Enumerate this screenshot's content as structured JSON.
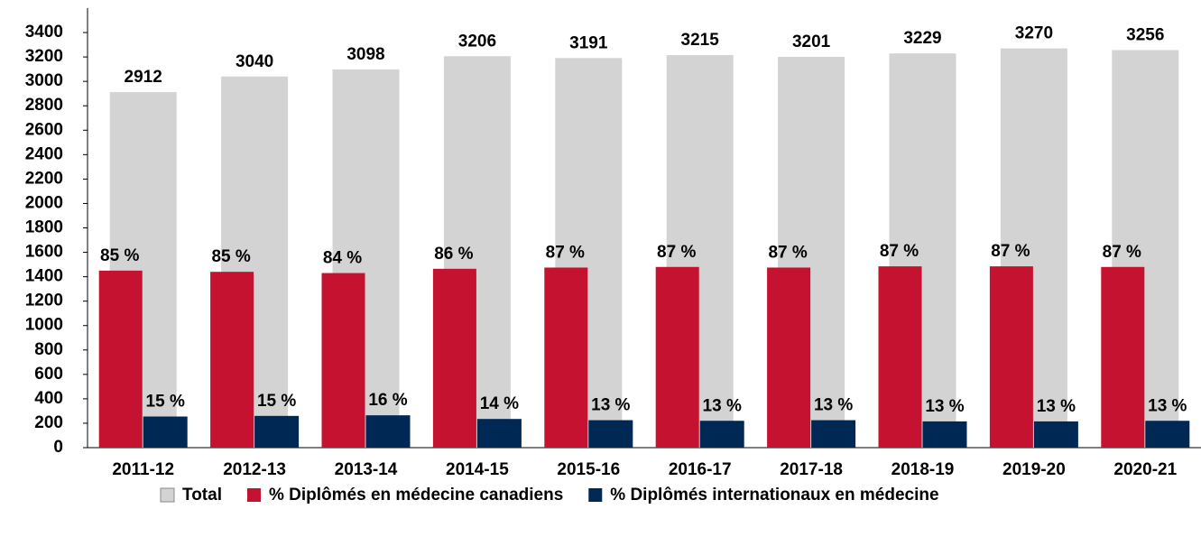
{
  "chart_data": {
    "type": "bar",
    "categories": [
      "2011-12",
      "2012-13",
      "2013-14",
      "2014-15",
      "2015-16",
      "2016-17",
      "2017-18",
      "2018-19",
      "2019-20",
      "2020-21"
    ],
    "series": [
      {
        "name": "Total",
        "color": "#d3d3d3",
        "values": [
          2912,
          3040,
          3098,
          3206,
          3191,
          3215,
          3201,
          3229,
          3270,
          3256
        ]
      },
      {
        "name": "% Diplômés en médecine canadiens",
        "color": "#c41230",
        "values": [
          1450,
          1440,
          1430,
          1465,
          1475,
          1480,
          1475,
          1485,
          1485,
          1480
        ],
        "value_labels": [
          "85 %",
          "85 %",
          "84 %",
          "86 %",
          "87 %",
          "87 %",
          "87 %",
          "87 %",
          "87 %",
          "87 %"
        ]
      },
      {
        "name": "% Diplômés internationaux en médecine",
        "color": "#002855",
        "values": [
          255,
          260,
          265,
          235,
          225,
          220,
          225,
          215,
          215,
          220
        ],
        "value_labels": [
          "15 %",
          "15 %",
          "16 %",
          "14 %",
          "13 %",
          "13 %",
          "13 %",
          "13 %",
          "13 %",
          "13 %"
        ]
      }
    ],
    "ylim": [
      0,
      3600
    ],
    "yticks": [
      0,
      200,
      400,
      600,
      800,
      1000,
      1200,
      1400,
      1600,
      1800,
      2000,
      2200,
      2400,
      2600,
      2800,
      3000,
      3200,
      3400
    ],
    "legend": "bottom"
  }
}
